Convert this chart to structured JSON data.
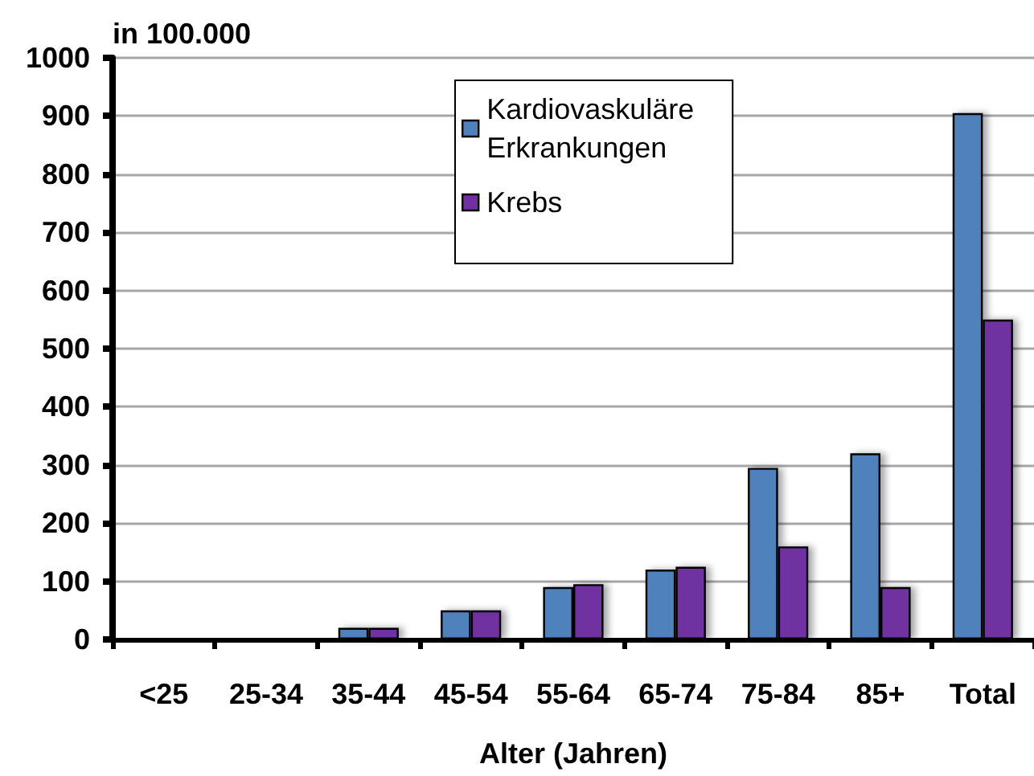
{
  "chart_data": {
    "type": "bar",
    "ylabel": "in 100.000",
    "xlabel": "Alter (Jahren)",
    "categories": [
      "<25",
      "25-34",
      "35-44",
      "45-54",
      "55-64",
      "65-74",
      "75-84",
      "85+",
      "Total"
    ],
    "series": [
      {
        "name": "Kardiovaskuläre Erkrankungen",
        "color": "#4f81bd",
        "values": [
          0,
          0,
          20,
          50,
          90,
          120,
          295,
          320,
          905
        ]
      },
      {
        "name": "Krebs",
        "color": "#7030a0",
        "values": [
          0,
          0,
          20,
          50,
          95,
          125,
          160,
          90,
          550
        ]
      }
    ],
    "ylim": [
      0,
      1000
    ],
    "yticks": [
      0,
      100,
      200,
      300,
      400,
      500,
      600,
      700,
      800,
      900,
      1000
    ],
    "grid": "y",
    "legend": "top"
  }
}
